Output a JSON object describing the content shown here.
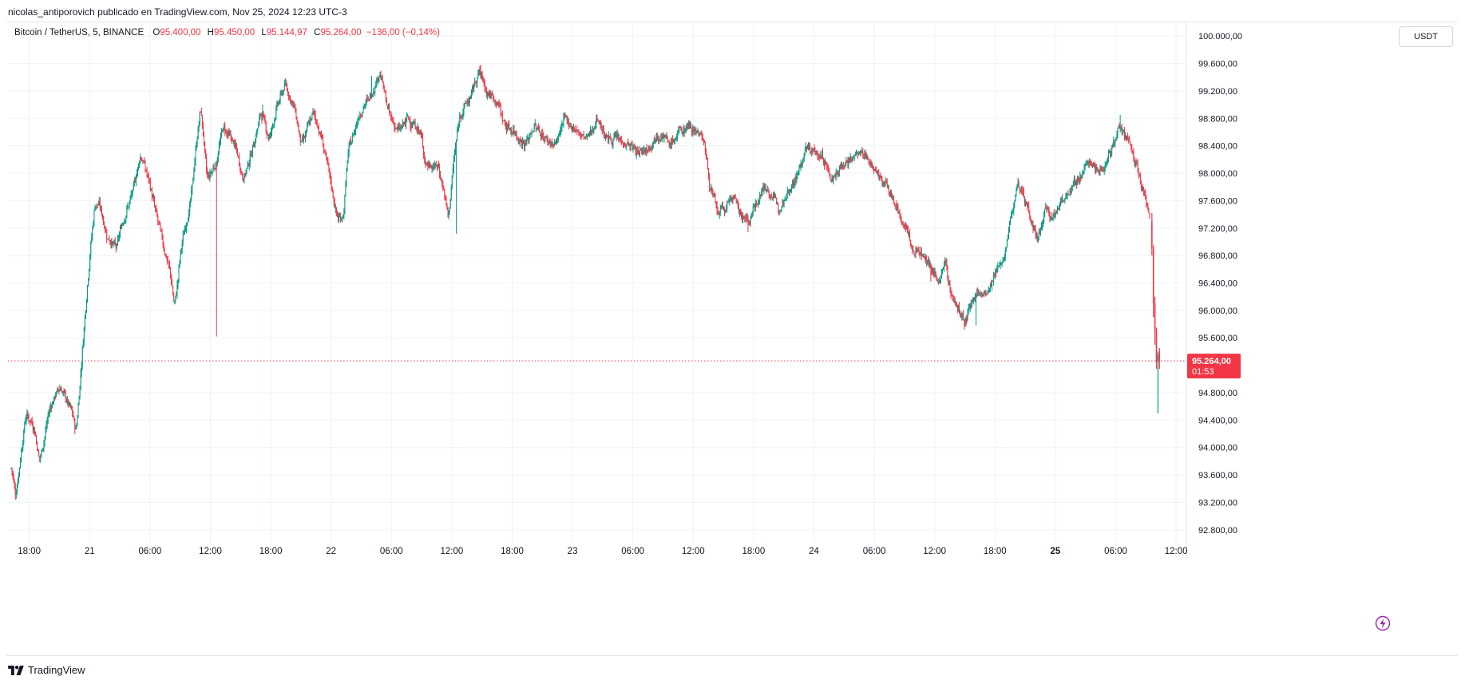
{
  "header": {
    "published_line": "nicolas_antiporovich publicado en TradingView.com, Nov 25, 2024 12:23 UTC-3"
  },
  "legend": {
    "symbol": "Bitcoin / TetherUS, 5, BINANCE",
    "o_label": "O",
    "o_value": "95.400,00",
    "h_label": "H",
    "h_value": "95.450,00",
    "l_label": "L",
    "l_value": "95.144,97",
    "c_label": "C",
    "c_value": "95.264,00",
    "change": "−136,00 (−0,14%)"
  },
  "toolbar": {
    "currency": "USDT"
  },
  "footer": {
    "brand": "TradingView"
  },
  "colors": {
    "up": "#089981",
    "down": "#f23645",
    "grid": "#f0f3fa",
    "text": "#131722"
  },
  "icons": {
    "alert": "lightning-bolt-icon",
    "logo": "tradingview-logo-icon"
  },
  "chart_data": {
    "type": "candlestick",
    "symbol": "BTCUSDT",
    "interval_minutes": 5,
    "y_range": [
      92600,
      100200
    ],
    "y_tick_values": [
      92800,
      93200,
      93600,
      94000,
      94400,
      94800,
      95600,
      96000,
      96400,
      96800,
      97200,
      97600,
      98000,
      98400,
      98800,
      99200,
      99600,
      100000
    ],
    "y_tick_labels": [
      "92.800,00",
      "93.200,00",
      "93.600,00",
      "94.000,00",
      "94.400,00",
      "94.800,00",
      "95.600,00",
      "96.000,00",
      "96.400,00",
      "96.800,00",
      "97.200,00",
      "97.600,00",
      "98.000,00",
      "98.400,00",
      "98.800,00",
      "99.200,00",
      "99.600,00",
      "100.000,00"
    ],
    "x_range_hours": [
      -4.8,
      108.4
    ],
    "x_ticks": [
      {
        "hour": -3,
        "label": "18:00",
        "bold": false
      },
      {
        "hour": 3,
        "label": "21",
        "bold": false
      },
      {
        "hour": 9,
        "label": "06:00",
        "bold": false
      },
      {
        "hour": 15,
        "label": "12:00",
        "bold": false
      },
      {
        "hour": 21,
        "label": "18:00",
        "bold": false
      },
      {
        "hour": 27,
        "label": "22",
        "bold": false
      },
      {
        "hour": 33,
        "label": "06:00",
        "bold": false
      },
      {
        "hour": 39,
        "label": "12:00",
        "bold": false
      },
      {
        "hour": 45,
        "label": "18:00",
        "bold": false
      },
      {
        "hour": 51,
        "label": "23",
        "bold": false
      },
      {
        "hour": 57,
        "label": "06:00",
        "bold": false
      },
      {
        "hour": 63,
        "label": "12:00",
        "bold": false
      },
      {
        "hour": 69,
        "label": "18:00",
        "bold": false
      },
      {
        "hour": 75,
        "label": "24",
        "bold": false
      },
      {
        "hour": 81,
        "label": "06:00",
        "bold": false
      },
      {
        "hour": 87,
        "label": "12:00",
        "bold": false
      },
      {
        "hour": 93,
        "label": "18:00",
        "bold": false
      },
      {
        "hour": 99,
        "label": "25",
        "bold": true
      },
      {
        "hour": 105,
        "label": "06:00",
        "bold": false
      },
      {
        "hour": 111,
        "label": "12:00",
        "bold": false
      }
    ],
    "price_path": [
      [
        -4.8,
        93700
      ],
      [
        -4.4,
        93300
      ],
      [
        -3.4,
        94500
      ],
      [
        -2.6,
        94300
      ],
      [
        -2.0,
        93800
      ],
      [
        -1.0,
        94600
      ],
      [
        0.0,
        94900
      ],
      [
        1.2,
        94500
      ],
      [
        1.6,
        94200
      ],
      [
        2.4,
        95800
      ],
      [
        3.0,
        96900
      ],
      [
        3.5,
        97600
      ],
      [
        4.0,
        97500
      ],
      [
        4.6,
        97100
      ],
      [
        5.6,
        96900
      ],
      [
        6.2,
        97300
      ],
      [
        7.2,
        97700
      ],
      [
        8.0,
        98300
      ],
      [
        8.8,
        97900
      ],
      [
        9.4,
        97500
      ],
      [
        10.2,
        97000
      ],
      [
        11.0,
        96500
      ],
      [
        11.4,
        96000
      ],
      [
        12.0,
        96900
      ],
      [
        13.0,
        97600
      ],
      [
        13.6,
        98500
      ],
      [
        14.0,
        99000
      ],
      [
        14.6,
        97900
      ],
      [
        15.6,
        98200
      ],
      [
        16.2,
        98700
      ],
      [
        17.4,
        98400
      ],
      [
        18.2,
        97900
      ],
      [
        19.2,
        98400
      ],
      [
        20.0,
        98900
      ],
      [
        20.8,
        98500
      ],
      [
        21.6,
        99000
      ],
      [
        22.4,
        99300
      ],
      [
        23.4,
        98900
      ],
      [
        24.0,
        98400
      ],
      [
        25.2,
        98900
      ],
      [
        26.2,
        98400
      ],
      [
        27.6,
        97300
      ],
      [
        28.2,
        97400
      ],
      [
        28.6,
        98300
      ],
      [
        29.8,
        98900
      ],
      [
        30.8,
        99100
      ],
      [
        31.8,
        99500
      ],
      [
        32.6,
        98900
      ],
      [
        33.6,
        98600
      ],
      [
        34.6,
        98800
      ],
      [
        35.8,
        98600
      ],
      [
        36.4,
        98100
      ],
      [
        37.6,
        98100
      ],
      [
        38.2,
        97700
      ],
      [
        38.6,
        97300
      ],
      [
        39.2,
        98300
      ],
      [
        39.8,
        98900
      ],
      [
        40.8,
        99100
      ],
      [
        41.6,
        99500
      ],
      [
        42.4,
        99200
      ],
      [
        43.6,
        99000
      ],
      [
        44.2,
        98700
      ],
      [
        45.2,
        98600
      ],
      [
        46.2,
        98400
      ],
      [
        47.2,
        98700
      ],
      [
        48.2,
        98500
      ],
      [
        49.2,
        98400
      ],
      [
        50.2,
        98800
      ],
      [
        51.4,
        98600
      ],
      [
        52.4,
        98500
      ],
      [
        53.4,
        98800
      ],
      [
        54.4,
        98500
      ],
      [
        55.4,
        98500
      ],
      [
        56.6,
        98400
      ],
      [
        57.4,
        98300
      ],
      [
        58.6,
        98400
      ],
      [
        59.6,
        98600
      ],
      [
        60.6,
        98400
      ],
      [
        61.6,
        98600
      ],
      [
        62.6,
        98700
      ],
      [
        63.4,
        98600
      ],
      [
        64.0,
        98500
      ],
      [
        64.6,
        97800
      ],
      [
        65.4,
        97400
      ],
      [
        66.2,
        97500
      ],
      [
        66.8,
        97700
      ],
      [
        67.6,
        97400
      ],
      [
        68.6,
        97300
      ],
      [
        69.2,
        97600
      ],
      [
        70.0,
        97800
      ],
      [
        70.6,
        97700
      ],
      [
        71.4,
        97500
      ],
      [
        72.6,
        97800
      ],
      [
        73.4,
        98000
      ],
      [
        74.2,
        98400
      ],
      [
        75.0,
        98300
      ],
      [
        76.0,
        98200
      ],
      [
        76.6,
        97900
      ],
      [
        77.6,
        98100
      ],
      [
        78.6,
        98200
      ],
      [
        79.6,
        98300
      ],
      [
        80.4,
        98200
      ],
      [
        81.2,
        98000
      ],
      [
        82.2,
        97800
      ],
      [
        82.8,
        97600
      ],
      [
        83.4,
        97400
      ],
      [
        84.2,
        97200
      ],
      [
        84.8,
        96800
      ],
      [
        85.4,
        96900
      ],
      [
        86.4,
        96700
      ],
      [
        87.2,
        96400
      ],
      [
        88.0,
        96700
      ],
      [
        88.6,
        96200
      ],
      [
        89.4,
        96000
      ],
      [
        90.0,
        95800
      ],
      [
        90.6,
        96100
      ],
      [
        91.2,
        96300
      ],
      [
        91.8,
        96200
      ],
      [
        92.4,
        96300
      ],
      [
        93.2,
        96600
      ],
      [
        94.0,
        96900
      ],
      [
        94.6,
        97400
      ],
      [
        95.2,
        97900
      ],
      [
        96.0,
        97600
      ],
      [
        96.6,
        97300
      ],
      [
        97.2,
        97000
      ],
      [
        98.0,
        97500
      ],
      [
        98.6,
        97300
      ],
      [
        99.4,
        97600
      ],
      [
        100.6,
        97800
      ],
      [
        101.6,
        98000
      ],
      [
        102.4,
        98200
      ],
      [
        103.4,
        98000
      ],
      [
        104.4,
        98300
      ],
      [
        105.2,
        98700
      ],
      [
        105.8,
        98500
      ],
      [
        106.4,
        98400
      ],
      [
        107.0,
        98100
      ],
      [
        107.8,
        97700
      ],
      [
        108.4,
        97300
      ]
    ],
    "last_candles": [
      {
        "hour": 108.6,
        "o": 97300,
        "h": 97420,
        "l": 96800,
        "c": 96900
      },
      {
        "hour": 108.75,
        "o": 96900,
        "h": 96950,
        "l": 95900,
        "c": 96100
      },
      {
        "hour": 108.9,
        "o": 96100,
        "h": 96200,
        "l": 95500,
        "c": 95700
      },
      {
        "hour": 109.05,
        "o": 95700,
        "h": 95750,
        "l": 95150,
        "c": 95250
      },
      {
        "hour": 109.2,
        "o": 95250,
        "h": 95400,
        "l": 94500,
        "c": 95350
      },
      {
        "hour": 109.35,
        "o": 95400,
        "h": 95450,
        "l": 95144.97,
        "c": 95264
      }
    ],
    "spikes": [
      {
        "hour": -4.3,
        "low": 93250
      },
      {
        "hour": 15.6,
        "low": 95620
      },
      {
        "hour": 39.4,
        "low": 97120
      },
      {
        "hour": 68.4,
        "low": 97140
      },
      {
        "hour": 86.6,
        "low": 96420
      },
      {
        "hour": 89.9,
        "low": 95720
      },
      {
        "hour": 91.1,
        "low": 95780
      }
    ],
    "peaks": [
      {
        "hour": 20.2,
        "high": 99000
      },
      {
        "hour": 31.0,
        "high": 99420
      },
      {
        "hour": 41.8,
        "high": 99580
      },
      {
        "hour": 105.4,
        "high": 98850
      }
    ],
    "last_price": 95264,
    "last_price_label": "95.264,00",
    "countdown_label": "01:53"
  }
}
